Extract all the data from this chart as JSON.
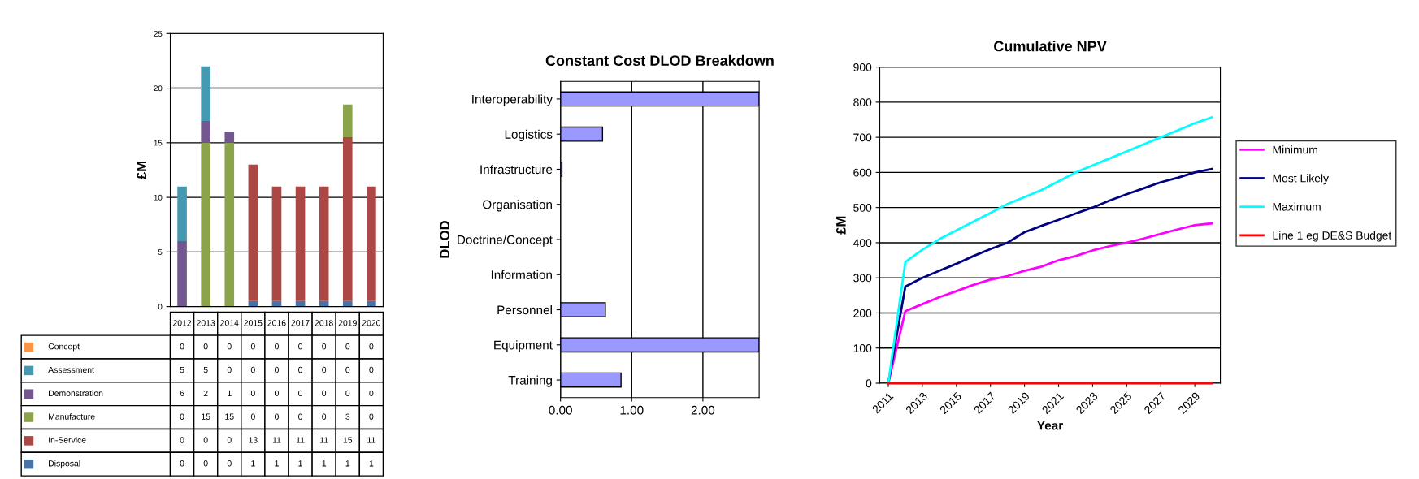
{
  "chart_data": [
    {
      "type": "bar",
      "stacked": true,
      "legend": "bottom",
      "ylabel": "£M",
      "ylim": [
        0,
        25
      ],
      "yticks": [
        0,
        5,
        10,
        15,
        20,
        25
      ],
      "grid": "y",
      "categories": [
        "2012",
        "2013",
        "2014",
        "2015",
        "2016",
        "2017",
        "2018",
        "2019",
        "2020"
      ],
      "series": [
        {
          "name": "Disposal",
          "color": "#4673a8",
          "values": [
            0,
            0,
            0,
            0.5,
            0.5,
            0.5,
            0.5,
            0.5,
            0.5
          ],
          "value_labels": [
            "0",
            "0",
            "0",
            "1",
            "1",
            "1",
            "1",
            "1",
            "1"
          ]
        },
        {
          "name": "In-Service",
          "color": "#ab4744",
          "values": [
            0,
            0,
            0,
            12.5,
            10.5,
            10.5,
            10.5,
            15,
            10.5
          ],
          "value_labels": [
            "0",
            "0",
            "0",
            "13",
            "11",
            "11",
            "11",
            "15",
            "11"
          ]
        },
        {
          "name": "Manufacture",
          "color": "#8ba44b",
          "values": [
            0,
            15,
            15,
            0,
            0,
            0,
            0,
            3,
            0
          ],
          "value_labels": [
            "0",
            "15",
            "15",
            "0",
            "0",
            "0",
            "0",
            "3",
            "0"
          ]
        },
        {
          "name": "Demonstration",
          "color": "#72588e",
          "values": [
            6,
            2,
            1,
            0,
            0,
            0,
            0,
            0,
            0
          ],
          "value_labels": [
            "6",
            "2",
            "1",
            "0",
            "0",
            "0",
            "0",
            "0",
            "0"
          ]
        },
        {
          "name": "Assessment",
          "color": "#4599b0",
          "values": [
            5,
            5,
            0,
            0,
            0,
            0,
            0,
            0,
            0
          ],
          "value_labels": [
            "5",
            "5",
            "0",
            "0",
            "0",
            "0",
            "0",
            "0",
            "0"
          ]
        },
        {
          "name": "Concept",
          "color": "#f79646",
          "values": [
            0,
            0,
            0,
            0,
            0,
            0,
            0,
            0,
            0
          ],
          "value_labels": [
            "0",
            "0",
            "0",
            "0",
            "0",
            "0",
            "0",
            "0",
            "0"
          ]
        }
      ]
    },
    {
      "type": "bar",
      "orientation": "horizontal",
      "title": "Constant Cost DLOD Breakdown",
      "ylabel": "DLOD",
      "grid": "x",
      "categories": [
        "Interoperability",
        "Logistics",
        "Infrastructure",
        "Organisation",
        "Doctrine/Concept",
        "Information",
        "Personnel",
        "Equipment",
        "Training"
      ],
      "values": [
        2.79,
        0.59,
        0.02,
        0,
        0,
        0,
        0.63,
        2.79,
        0.85
      ],
      "color": "#9999ff",
      "xlim": [
        0,
        2.79
      ],
      "xticks": [
        {
          "value": 0,
          "label": "0.00"
        },
        {
          "value": 1,
          "label": "1.00"
        },
        {
          "value": 2,
          "label": "2.00"
        }
      ]
    },
    {
      "type": "line",
      "title": "Cumulative NPV",
      "xlabel": "Year",
      "ylabel": "£M",
      "legend": "right",
      "grid": "y",
      "marker": "none",
      "line_style": "solid",
      "x": [
        2011,
        2012,
        2013,
        2014,
        2015,
        2016,
        2017,
        2018,
        2019,
        2020,
        2021,
        2022,
        2023,
        2024,
        2025,
        2026,
        2027,
        2028,
        2029,
        2030
      ],
      "xlim": [
        2010.5,
        2030.5
      ],
      "xticks": [
        2011,
        2013,
        2015,
        2017,
        2019,
        2021,
        2023,
        2025,
        2027,
        2029
      ],
      "ylim": [
        0,
        900
      ],
      "yticks": [
        0,
        100,
        200,
        300,
        400,
        500,
        600,
        700,
        800,
        900
      ],
      "series": [
        {
          "name": "Minimum",
          "color": "#ff00ff",
          "values": [
            0,
            205,
            225,
            245,
            262,
            280,
            295,
            305,
            320,
            332,
            350,
            362,
            378,
            390,
            400,
            412,
            425,
            438,
            450,
            455
          ]
        },
        {
          "name": "Most Likely",
          "color": "#000080",
          "values": [
            0,
            275,
            300,
            320,
            340,
            362,
            382,
            400,
            430,
            448,
            465,
            483,
            500,
            520,
            538,
            555,
            572,
            585,
            600,
            610
          ]
        },
        {
          "name": "Maximum",
          "color": "#00ffff",
          "values": [
            0,
            345,
            380,
            410,
            435,
            460,
            485,
            510,
            530,
            550,
            575,
            600,
            620,
            640,
            660,
            680,
            700,
            720,
            740,
            757
          ]
        },
        {
          "name": "Line 1 eg DE&S Budget",
          "color": "#ff0000",
          "values": [
            0,
            0,
            0,
            0,
            0,
            0,
            0,
            0,
            0,
            0,
            0,
            0,
            0,
            0,
            0,
            0,
            0,
            0,
            0,
            0
          ]
        }
      ]
    }
  ]
}
